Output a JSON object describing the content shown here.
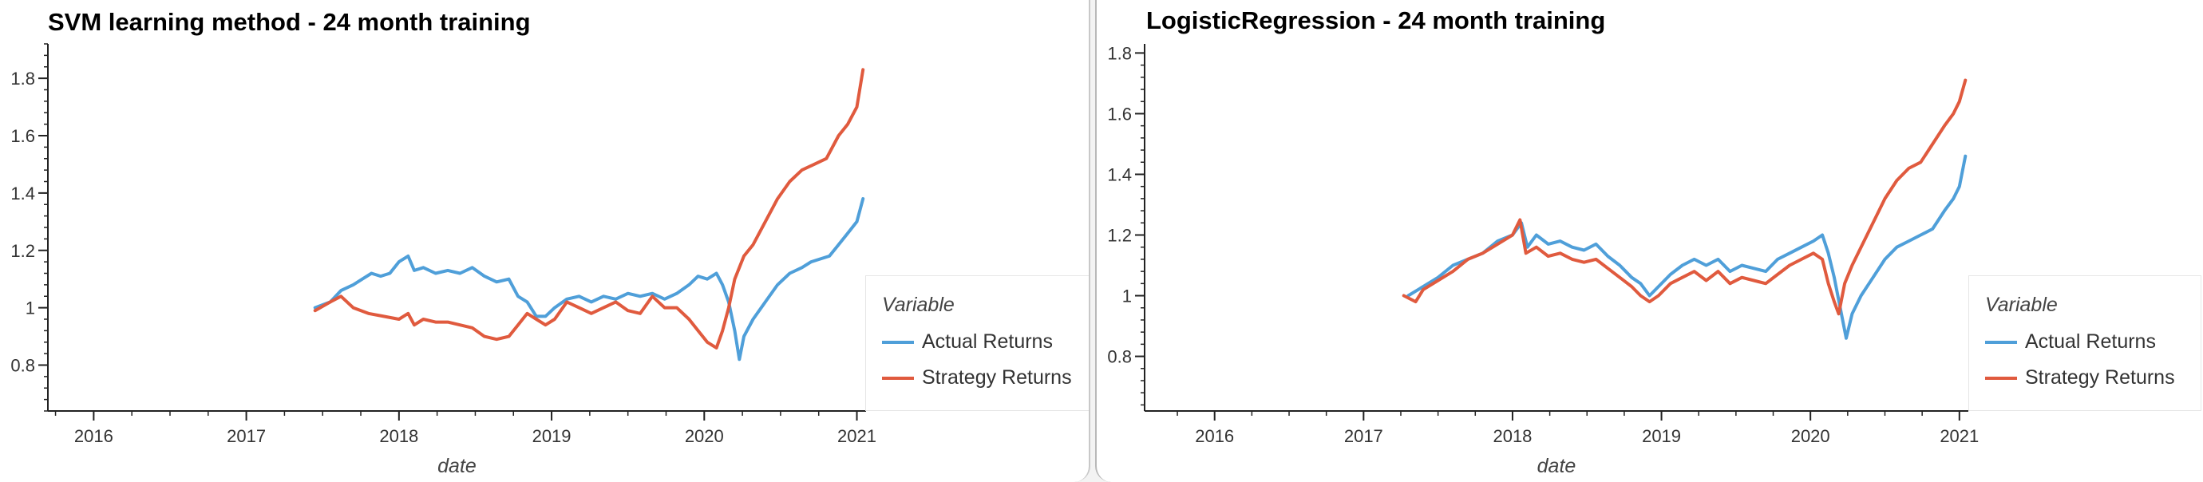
{
  "colors": {
    "actual": "#4f9fd9",
    "strategy": "#e05a3e"
  },
  "charts": [
    {
      "id": "svm",
      "chart_data": {
        "type": "line",
        "title": "SVM learning method - 24 month training",
        "xlabel": "date",
        "ylabel": "",
        "xlim": [
          2015.7,
          2021.06
        ],
        "ylim": [
          0.64,
          1.92
        ],
        "x_ticks": [
          2016,
          2017,
          2018,
          2019,
          2020,
          2021
        ],
        "x_tick_labels": [
          "2016",
          "2017",
          "2018",
          "2019",
          "2020",
          "2021"
        ],
        "y_ticks": [
          0.8,
          1.0,
          1.2,
          1.4,
          1.6,
          1.8
        ],
        "y_tick_labels": [
          "0.8",
          "1",
          "1.2",
          "1.4",
          "1.6",
          "1.8"
        ],
        "grid": false,
        "legend": {
          "title": "Variable",
          "position": "right"
        },
        "series": [
          {
            "name": "Actual Returns",
            "color": "#4f9fd9",
            "points": [
              [
                2017.45,
                1.0
              ],
              [
                2017.55,
                1.02
              ],
              [
                2017.62,
                1.06
              ],
              [
                2017.7,
                1.08
              ],
              [
                2017.76,
                1.1
              ],
              [
                2017.82,
                1.12
              ],
              [
                2017.88,
                1.11
              ],
              [
                2017.94,
                1.12
              ],
              [
                2018.0,
                1.16
              ],
              [
                2018.06,
                1.18
              ],
              [
                2018.1,
                1.13
              ],
              [
                2018.16,
                1.14
              ],
              [
                2018.24,
                1.12
              ],
              [
                2018.32,
                1.13
              ],
              [
                2018.4,
                1.12
              ],
              [
                2018.48,
                1.14
              ],
              [
                2018.56,
                1.11
              ],
              [
                2018.64,
                1.09
              ],
              [
                2018.72,
                1.1
              ],
              [
                2018.78,
                1.04
              ],
              [
                2018.84,
                1.02
              ],
              [
                2018.9,
                0.97
              ],
              [
                2018.96,
                0.97
              ],
              [
                2019.02,
                1.0
              ],
              [
                2019.1,
                1.03
              ],
              [
                2019.18,
                1.04
              ],
              [
                2019.26,
                1.02
              ],
              [
                2019.34,
                1.04
              ],
              [
                2019.42,
                1.03
              ],
              [
                2019.5,
                1.05
              ],
              [
                2019.58,
                1.04
              ],
              [
                2019.66,
                1.05
              ],
              [
                2019.74,
                1.03
              ],
              [
                2019.82,
                1.05
              ],
              [
                2019.9,
                1.08
              ],
              [
                2019.96,
                1.11
              ],
              [
                2020.02,
                1.1
              ],
              [
                2020.08,
                1.12
              ],
              [
                2020.12,
                1.08
              ],
              [
                2020.16,
                1.02
              ],
              [
                2020.2,
                0.92
              ],
              [
                2020.23,
                0.82
              ],
              [
                2020.26,
                0.9
              ],
              [
                2020.32,
                0.96
              ],
              [
                2020.4,
                1.02
              ],
              [
                2020.48,
                1.08
              ],
              [
                2020.56,
                1.12
              ],
              [
                2020.64,
                1.14
              ],
              [
                2020.7,
                1.16
              ],
              [
                2020.76,
                1.17
              ],
              [
                2020.82,
                1.18
              ],
              [
                2020.88,
                1.22
              ],
              [
                2020.94,
                1.26
              ],
              [
                2021.0,
                1.3
              ],
              [
                2021.04,
                1.38
              ]
            ]
          },
          {
            "name": "Strategy Returns",
            "color": "#e05a3e",
            "points": [
              [
                2017.45,
                0.99
              ],
              [
                2017.55,
                1.02
              ],
              [
                2017.62,
                1.04
              ],
              [
                2017.7,
                1.0
              ],
              [
                2017.8,
                0.98
              ],
              [
                2017.9,
                0.97
              ],
              [
                2018.0,
                0.96
              ],
              [
                2018.06,
                0.98
              ],
              [
                2018.1,
                0.94
              ],
              [
                2018.16,
                0.96
              ],
              [
                2018.24,
                0.95
              ],
              [
                2018.32,
                0.95
              ],
              [
                2018.4,
                0.94
              ],
              [
                2018.48,
                0.93
              ],
              [
                2018.56,
                0.9
              ],
              [
                2018.64,
                0.89
              ],
              [
                2018.72,
                0.9
              ],
              [
                2018.78,
                0.94
              ],
              [
                2018.84,
                0.98
              ],
              [
                2018.9,
                0.96
              ],
              [
                2018.96,
                0.94
              ],
              [
                2019.02,
                0.96
              ],
              [
                2019.1,
                1.02
              ],
              [
                2019.18,
                1.0
              ],
              [
                2019.26,
                0.98
              ],
              [
                2019.34,
                1.0
              ],
              [
                2019.42,
                1.02
              ],
              [
                2019.5,
                0.99
              ],
              [
                2019.58,
                0.98
              ],
              [
                2019.66,
                1.04
              ],
              [
                2019.74,
                1.0
              ],
              [
                2019.82,
                1.0
              ],
              [
                2019.9,
                0.96
              ],
              [
                2019.96,
                0.92
              ],
              [
                2020.02,
                0.88
              ],
              [
                2020.08,
                0.86
              ],
              [
                2020.12,
                0.92
              ],
              [
                2020.16,
                1.0
              ],
              [
                2020.2,
                1.1
              ],
              [
                2020.26,
                1.18
              ],
              [
                2020.32,
                1.22
              ],
              [
                2020.4,
                1.3
              ],
              [
                2020.48,
                1.38
              ],
              [
                2020.56,
                1.44
              ],
              [
                2020.64,
                1.48
              ],
              [
                2020.72,
                1.5
              ],
              [
                2020.8,
                1.52
              ],
              [
                2020.88,
                1.6
              ],
              [
                2020.94,
                1.64
              ],
              [
                2021.0,
                1.7
              ],
              [
                2021.04,
                1.83
              ]
            ]
          }
        ]
      }
    },
    {
      "id": "logreg",
      "chart_data": {
        "type": "line",
        "title": "LogisticRegression - 24 month training",
        "xlabel": "date",
        "ylabel": "",
        "xlim": [
          2015.53,
          2021.06
        ],
        "ylim": [
          0.62,
          1.83
        ],
        "x_ticks": [
          2016,
          2017,
          2018,
          2019,
          2020,
          2021
        ],
        "x_tick_labels": [
          "2016",
          "2017",
          "2018",
          "2019",
          "2020",
          "2021"
        ],
        "y_ticks": [
          0.8,
          1.0,
          1.2,
          1.4,
          1.6,
          1.8
        ],
        "y_tick_labels": [
          "0.8",
          "1",
          "1.2",
          "1.4",
          "1.6",
          "1.8"
        ],
        "grid": false,
        "legend": {
          "title": "Variable",
          "position": "right"
        },
        "series": [
          {
            "name": "Actual Returns",
            "color": "#4f9fd9",
            "points": [
              [
                2017.3,
                1.0
              ],
              [
                2017.4,
                1.03
              ],
              [
                2017.5,
                1.06
              ],
              [
                2017.6,
                1.1
              ],
              [
                2017.7,
                1.12
              ],
              [
                2017.8,
                1.14
              ],
              [
                2017.9,
                1.18
              ],
              [
                2018.0,
                1.2
              ],
              [
                2018.06,
                1.24
              ],
              [
                2018.1,
                1.16
              ],
              [
                2018.16,
                1.2
              ],
              [
                2018.24,
                1.17
              ],
              [
                2018.32,
                1.18
              ],
              [
                2018.4,
                1.16
              ],
              [
                2018.48,
                1.15
              ],
              [
                2018.56,
                1.17
              ],
              [
                2018.64,
                1.13
              ],
              [
                2018.72,
                1.1
              ],
              [
                2018.8,
                1.06
              ],
              [
                2018.86,
                1.04
              ],
              [
                2018.92,
                1.0
              ],
              [
                2018.98,
                1.03
              ],
              [
                2019.06,
                1.07
              ],
              [
                2019.14,
                1.1
              ],
              [
                2019.22,
                1.12
              ],
              [
                2019.3,
                1.1
              ],
              [
                2019.38,
                1.12
              ],
              [
                2019.46,
                1.08
              ],
              [
                2019.54,
                1.1
              ],
              [
                2019.62,
                1.09
              ],
              [
                2019.7,
                1.08
              ],
              [
                2019.78,
                1.12
              ],
              [
                2019.86,
                1.14
              ],
              [
                2019.94,
                1.16
              ],
              [
                2020.02,
                1.18
              ],
              [
                2020.08,
                1.2
              ],
              [
                2020.12,
                1.14
              ],
              [
                2020.16,
                1.06
              ],
              [
                2020.2,
                0.96
              ],
              [
                2020.24,
                0.86
              ],
              [
                2020.28,
                0.94
              ],
              [
                2020.34,
                1.0
              ],
              [
                2020.42,
                1.06
              ],
              [
                2020.5,
                1.12
              ],
              [
                2020.58,
                1.16
              ],
              [
                2020.66,
                1.18
              ],
              [
                2020.74,
                1.2
              ],
              [
                2020.82,
                1.22
              ],
              [
                2020.9,
                1.28
              ],
              [
                2020.96,
                1.32
              ],
              [
                2021.0,
                1.36
              ],
              [
                2021.04,
                1.46
              ]
            ]
          },
          {
            "name": "Strategy Returns",
            "color": "#e05a3e",
            "points": [
              [
                2017.27,
                1.0
              ],
              [
                2017.35,
                0.98
              ],
              [
                2017.4,
                1.02
              ],
              [
                2017.5,
                1.05
              ],
              [
                2017.6,
                1.08
              ],
              [
                2017.7,
                1.12
              ],
              [
                2017.8,
                1.14
              ],
              [
                2017.9,
                1.17
              ],
              [
                2018.0,
                1.2
              ],
              [
                2018.05,
                1.25
              ],
              [
                2018.09,
                1.14
              ],
              [
                2018.16,
                1.16
              ],
              [
                2018.24,
                1.13
              ],
              [
                2018.32,
                1.14
              ],
              [
                2018.4,
                1.12
              ],
              [
                2018.48,
                1.11
              ],
              [
                2018.56,
                1.12
              ],
              [
                2018.64,
                1.09
              ],
              [
                2018.72,
                1.06
              ],
              [
                2018.8,
                1.03
              ],
              [
                2018.86,
                1.0
              ],
              [
                2018.92,
                0.98
              ],
              [
                2018.98,
                1.0
              ],
              [
                2019.06,
                1.04
              ],
              [
                2019.14,
                1.06
              ],
              [
                2019.22,
                1.08
              ],
              [
                2019.3,
                1.05
              ],
              [
                2019.38,
                1.08
              ],
              [
                2019.46,
                1.04
              ],
              [
                2019.54,
                1.06
              ],
              [
                2019.62,
                1.05
              ],
              [
                2019.7,
                1.04
              ],
              [
                2019.78,
                1.07
              ],
              [
                2019.86,
                1.1
              ],
              [
                2019.94,
                1.12
              ],
              [
                2020.02,
                1.14
              ],
              [
                2020.08,
                1.12
              ],
              [
                2020.12,
                1.04
              ],
              [
                2020.16,
                0.98
              ],
              [
                2020.19,
                0.94
              ],
              [
                2020.23,
                1.04
              ],
              [
                2020.28,
                1.1
              ],
              [
                2020.34,
                1.16
              ],
              [
                2020.42,
                1.24
              ],
              [
                2020.5,
                1.32
              ],
              [
                2020.58,
                1.38
              ],
              [
                2020.66,
                1.42
              ],
              [
                2020.74,
                1.44
              ],
              [
                2020.82,
                1.5
              ],
              [
                2020.9,
                1.56
              ],
              [
                2020.96,
                1.6
              ],
              [
                2021.0,
                1.64
              ],
              [
                2021.04,
                1.71
              ]
            ]
          }
        ]
      }
    }
  ]
}
